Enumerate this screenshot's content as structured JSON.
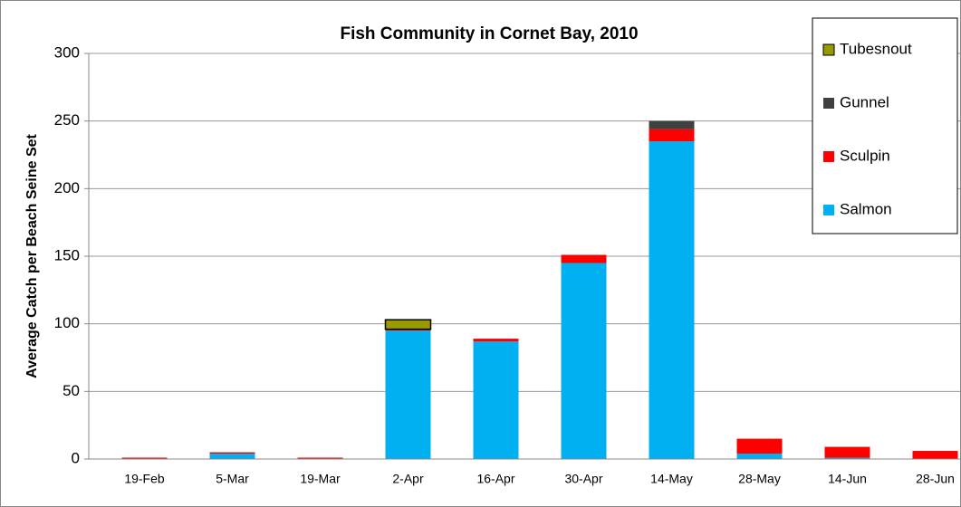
{
  "chart_data": {
    "type": "stacked_bar",
    "title": "Fish Community in Cornet Bay, 2010",
    "y_label": "Average Catch per Beach Seine Set",
    "categories": [
      "19-Feb",
      "5-Mar",
      "19-Mar",
      "2-Apr",
      "16-Apr",
      "30-Apr",
      "14-May",
      "28-May",
      "14-Jun",
      "28-Jun"
    ],
    "series": [
      {
        "name": "Salmon",
        "color": "#00b0f0",
        "values": [
          0,
          4,
          0,
          95,
          87,
          145,
          235,
          4,
          1,
          0
        ]
      },
      {
        "name": "Sculpin",
        "color": "#ff0000",
        "values": [
          1,
          1,
          1,
          1,
          2,
          6,
          9,
          11,
          8,
          6
        ]
      },
      {
        "name": "Gunnel",
        "color": "#404040",
        "values": [
          0,
          0,
          0,
          0,
          0,
          0,
          6,
          0,
          0,
          0
        ]
      },
      {
        "name": "Tubesnout",
        "color": "#999900",
        "values": [
          0,
          0,
          0,
          7,
          0,
          0,
          0,
          0,
          0,
          0
        ]
      }
    ],
    "ylim": [
      0,
      300
    ],
    "yticks": [
      0,
      50,
      100,
      150,
      200,
      250,
      300
    ],
    "grid": true,
    "legend": "top-right"
  }
}
